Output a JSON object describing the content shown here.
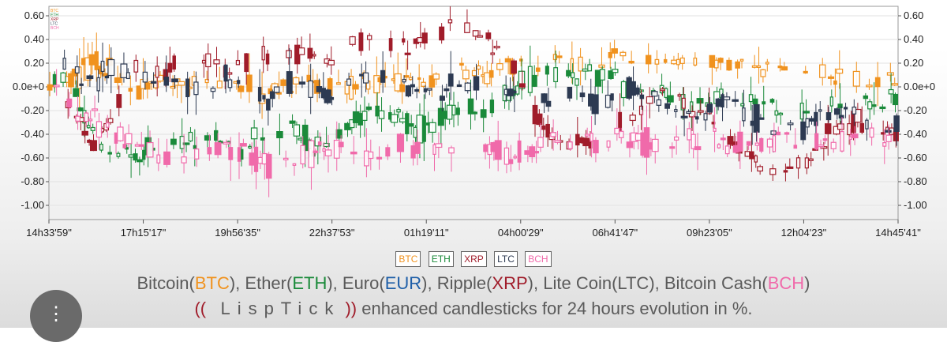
{
  "chart_data": {
    "type": "candlestick",
    "x_tick_labels": [
      "14h33'59\"",
      "17h15'17\"",
      "19h56'35\"",
      "22h37'53\"",
      "01h19'11\"",
      "04h00'29\"",
      "06h41'47\"",
      "09h23'05\"",
      "12h04'23\"",
      "14h45'41\""
    ],
    "y_tick_labels": [
      "0.60",
      "0.40",
      "0.20",
      "0.0e+0",
      "-0.20",
      "-0.40",
      "-0.60",
      "-0.80",
      "-1.00"
    ],
    "y_tick_values": [
      0.6,
      0.4,
      0.2,
      0.0,
      -0.2,
      -0.4,
      -0.6,
      -0.8,
      -1.0
    ],
    "ylim": [
      -1.12,
      0.68
    ],
    "series": [
      {
        "name": "BTC",
        "color": "#f0921e",
        "path": [
          0.05,
          0.07,
          0.18,
          0.08,
          0.02,
          0.05,
          0.02,
          -0.02,
          0.03,
          0.0,
          -0.02,
          0.0,
          0.02,
          -0.01,
          0.0,
          0.02,
          0.03,
          0.05,
          0.07,
          0.1,
          0.12,
          0.15,
          0.18,
          0.2,
          0.22,
          0.24,
          0.26,
          0.25,
          0.22,
          0.2,
          0.22,
          0.2,
          0.18,
          0.15,
          0.14,
          0.1,
          0.08,
          0.06,
          0.05,
          0.05
        ]
      },
      {
        "name": "ETH",
        "color": "#1a8a3a",
        "path": [
          0.1,
          0.02,
          -0.45,
          -0.6,
          -0.55,
          -0.5,
          -0.45,
          -0.42,
          -0.45,
          -0.5,
          -0.4,
          -0.3,
          -0.5,
          -0.45,
          -0.3,
          -0.15,
          -0.3,
          -0.35,
          -0.25,
          -0.15,
          -0.2,
          -0.1,
          0.05,
          0.15,
          0.1,
          0.12,
          0.05,
          -0.05,
          -0.05,
          -0.1,
          -0.15,
          -0.05,
          -0.1,
          -0.15,
          -0.2,
          -0.2,
          -0.1,
          -0.05,
          -0.15,
          -0.1
        ]
      },
      {
        "name": "XRP",
        "color": "#a01c2a",
        "path": [
          0.1,
          -0.2,
          -0.5,
          -0.2,
          0.2,
          0.1,
          0.25,
          0.2,
          0.15,
          0.2,
          0.25,
          0.28,
          0.3,
          0.25,
          0.35,
          0.4,
          0.3,
          0.4,
          0.45,
          0.55,
          0.45,
          0.3,
          -0.1,
          -0.4,
          -0.5,
          -0.45,
          -0.3,
          -0.25,
          0.0,
          -0.1,
          -0.2,
          -0.35,
          -0.55,
          -0.7,
          -0.7,
          -0.6,
          -0.4,
          -0.3,
          -0.35,
          -0.4
        ]
      },
      {
        "name": "LTC",
        "color": "#2d3a52",
        "path": [
          0.2,
          0.1,
          0.05,
          0.15,
          0.05,
          0.1,
          0.05,
          -0.1,
          0.1,
          0.0,
          -0.1,
          0.05,
          0.0,
          -0.1,
          0.05,
          0.1,
          0.02,
          0.0,
          -0.05,
          0.0,
          0.05,
          0.02,
          0.0,
          -0.1,
          -0.05,
          -0.1,
          -0.05,
          0.0,
          -0.1,
          -0.2,
          -0.25,
          -0.1,
          -0.2,
          -0.3,
          -0.35,
          -0.3,
          -0.25,
          -0.2,
          -0.3,
          -0.35
        ]
      },
      {
        "name": "BCH",
        "color": "#f06aaa",
        "path": [
          0.0,
          -0.2,
          -0.3,
          -0.4,
          -0.5,
          -0.55,
          -0.6,
          -0.55,
          -0.5,
          -0.6,
          -0.65,
          -0.6,
          -0.55,
          -0.5,
          -0.55,
          -0.6,
          -0.5,
          -0.55,
          -0.5,
          -0.45,
          -0.5,
          -0.6,
          -0.55,
          -0.5,
          -0.45,
          -0.5,
          -0.4,
          -0.45,
          -0.5,
          -0.45,
          -0.4,
          -0.5,
          -0.45,
          -0.5,
          -0.4,
          -0.45,
          -0.5,
          -0.45,
          -0.4,
          -0.45
        ]
      }
    ]
  },
  "legend": {
    "btc": {
      "label": "BTC",
      "color": "#f0921e"
    },
    "eth": {
      "label": "ETH",
      "color": "#1a8a3a"
    },
    "xrp": {
      "label": "XRP",
      "color": "#a01c2a"
    },
    "ltc": {
      "label": "LTC",
      "color": "#2d3a52"
    },
    "bch": {
      "label": "BCH",
      "color": "#f06aaa"
    }
  },
  "caption": {
    "line1": {
      "btc_name": "Bitcoin(",
      "btc_code": "BTC",
      "btc_close": "),",
      "eth_name": " Ether(",
      "eth_code": "ETH",
      "eth_close": "),",
      "eur_name": " Euro(",
      "eur_code": "EUR",
      "eur_close": "),",
      "xrp_name": " Ripple(",
      "xrp_code": "XRP",
      "xrp_close": "),",
      "ltc_full": " Lite Coin(LTC),",
      "bch_name": " Bitcoin Cash(",
      "bch_code": "BCH",
      "bch_close": ")"
    },
    "line2": {
      "open": "((",
      "brand": "LispTick",
      "close": "))",
      "text": " enhanced candlesticks for 24 hours evolution in %."
    },
    "colors": {
      "btc": "#f0921e",
      "eth": "#1a8a3a",
      "eur": "#1f5fa8",
      "xrp": "#a01c2a",
      "bch": "#f06aaa",
      "lisptick": "#a01c2a"
    }
  },
  "menu": {
    "icon": "more-vertical-icon",
    "glyph": "⋮"
  }
}
